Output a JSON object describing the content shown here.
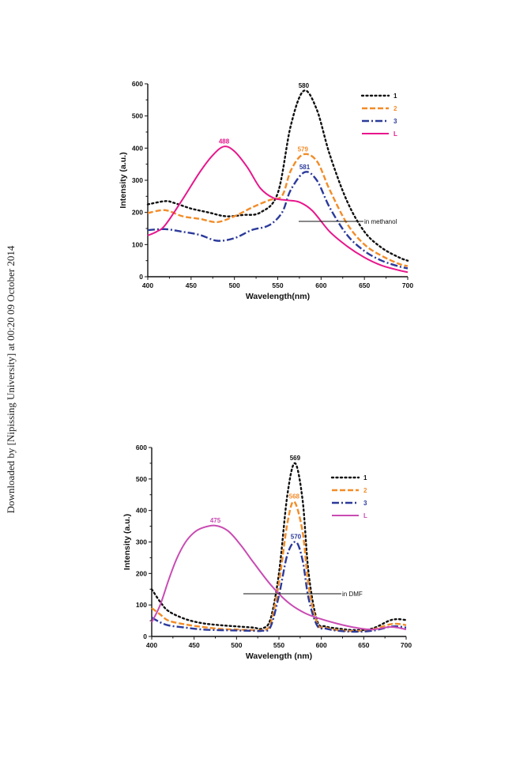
{
  "watermark": "Downloaded by [Nipissing University] at 00:20 09 October 2014",
  "colors": {
    "1": "#111111",
    "2": "#f28c28",
    "3": "#2b3a9a",
    "L_methanol": "#e8168c",
    "L_dmf": "#c94bb3"
  },
  "chart_data": [
    {
      "type": "line",
      "xlabel": "Wavelength(nm)",
      "ylabel": "Intensity (a.u.)",
      "xlim": [
        400,
        700
      ],
      "ylim": [
        0,
        600
      ],
      "xticks": [
        400,
        450,
        500,
        550,
        600,
        650,
        700
      ],
      "yticks": [
        0,
        100,
        200,
        300,
        400,
        500,
        600
      ],
      "legend": "top-right",
      "annotation": "in methanol",
      "series": [
        {
          "name": "1",
          "style": "dotted",
          "color_key": "1",
          "x": [
            400,
            420,
            430,
            450,
            470,
            490,
            510,
            530,
            550,
            565,
            580,
            595,
            610,
            630,
            650,
            670,
            690,
            700
          ],
          "y": [
            225,
            235,
            230,
            212,
            200,
            188,
            192,
            200,
            260,
            470,
            578,
            520,
            380,
            235,
            140,
            90,
            60,
            50
          ]
        },
        {
          "name": "2",
          "style": "dashed",
          "color_key": "2",
          "x": [
            400,
            420,
            440,
            460,
            480,
            500,
            520,
            540,
            555,
            565,
            579,
            595,
            610,
            630,
            650,
            670,
            690,
            700
          ],
          "y": [
            198,
            207,
            188,
            180,
            170,
            188,
            215,
            238,
            252,
            330,
            380,
            360,
            270,
            165,
            100,
            65,
            40,
            33
          ]
        },
        {
          "name": "3",
          "style": "dashdot",
          "color_key": "3",
          "x": [
            400,
            420,
            440,
            460,
            480,
            500,
            520,
            540,
            555,
            565,
            581,
            595,
            610,
            630,
            650,
            670,
            690,
            700
          ],
          "y": [
            145,
            148,
            140,
            130,
            112,
            120,
            145,
            160,
            200,
            270,
            325,
            300,
            215,
            130,
            80,
            50,
            32,
            26
          ]
        },
        {
          "name": "L",
          "style": "solid",
          "color_key": "L_methanol",
          "x": [
            400,
            410,
            420,
            440,
            460,
            475,
            488,
            500,
            515,
            530,
            545,
            560,
            575,
            590,
            610,
            630,
            650,
            670,
            690,
            700
          ],
          "y": [
            128,
            140,
            160,
            240,
            325,
            378,
            405,
            390,
            340,
            275,
            245,
            238,
            232,
            205,
            140,
            95,
            60,
            35,
            20,
            14
          ]
        }
      ],
      "peak_labels": [
        {
          "text": "580",
          "x": 580,
          "y": 578,
          "color_key": "1"
        },
        {
          "text": "579",
          "x": 579,
          "y": 380,
          "color_key": "2"
        },
        {
          "text": "581",
          "x": 581,
          "y": 325,
          "color_key": "3"
        },
        {
          "text": "488",
          "x": 488,
          "y": 405,
          "color_key": "L_methanol"
        }
      ]
    },
    {
      "type": "line",
      "xlabel": "Wavelength (nm)",
      "ylabel": "Intensity (a.u.)",
      "xlim": [
        400,
        700
      ],
      "ylim": [
        0,
        600
      ],
      "xticks": [
        400,
        450,
        500,
        550,
        600,
        650,
        700
      ],
      "yticks": [
        0,
        100,
        200,
        300,
        400,
        500,
        600
      ],
      "legend": "top-right",
      "annotation": "in DMF",
      "series": [
        {
          "name": "1",
          "style": "dotted",
          "color_key": "1",
          "x": [
            400,
            410,
            420,
            440,
            460,
            480,
            500,
            520,
            530,
            540,
            550,
            560,
            569,
            578,
            585,
            595,
            605,
            620,
            640,
            660,
            680,
            690,
            700
          ],
          "y": [
            150,
            110,
            80,
            55,
            42,
            36,
            32,
            28,
            25,
            55,
            200,
            450,
            550,
            430,
            200,
            50,
            32,
            25,
            20,
            25,
            50,
            55,
            52
          ]
        },
        {
          "name": "2",
          "style": "dashed",
          "color_key": "2",
          "x": [
            400,
            410,
            420,
            440,
            460,
            480,
            500,
            520,
            530,
            540,
            550,
            560,
            568,
            578,
            585,
            595,
            605,
            620,
            640,
            660,
            680,
            690,
            700
          ],
          "y": [
            90,
            70,
            50,
            38,
            30,
            24,
            22,
            20,
            20,
            40,
            170,
            360,
            428,
            330,
            160,
            42,
            28,
            20,
            17,
            22,
            38,
            40,
            36
          ]
        },
        {
          "name": "3",
          "style": "dashdot",
          "color_key": "3",
          "x": [
            400,
            410,
            420,
            440,
            460,
            480,
            500,
            520,
            530,
            540,
            550,
            560,
            570,
            578,
            585,
            595,
            605,
            620,
            640,
            660,
            680,
            690,
            700
          ],
          "y": [
            60,
            45,
            35,
            28,
            22,
            20,
            19,
            18,
            18,
            30,
            130,
            260,
            300,
            240,
            120,
            35,
            25,
            18,
            15,
            18,
            30,
            32,
            28
          ]
        },
        {
          "name": "L",
          "style": "solid",
          "color_key": "L_dmf",
          "x": [
            400,
            410,
            420,
            430,
            440,
            450,
            460,
            475,
            490,
            505,
            520,
            540,
            560,
            580,
            600,
            620,
            640,
            660,
            680,
            690,
            700
          ],
          "y": [
            45,
            100,
            180,
            250,
            300,
            330,
            345,
            352,
            335,
            290,
            235,
            165,
            110,
            75,
            55,
            40,
            28,
            22,
            30,
            28,
            22
          ]
        }
      ],
      "peak_labels": [
        {
          "text": "569",
          "x": 569,
          "y": 550,
          "color_key": "1"
        },
        {
          "text": "568",
          "x": 568,
          "y": 428,
          "color_key": "2"
        },
        {
          "text": "570",
          "x": 570,
          "y": 300,
          "color_key": "3"
        },
        {
          "text": "475",
          "x": 475,
          "y": 352,
          "color_key": "L_dmf"
        }
      ]
    }
  ]
}
